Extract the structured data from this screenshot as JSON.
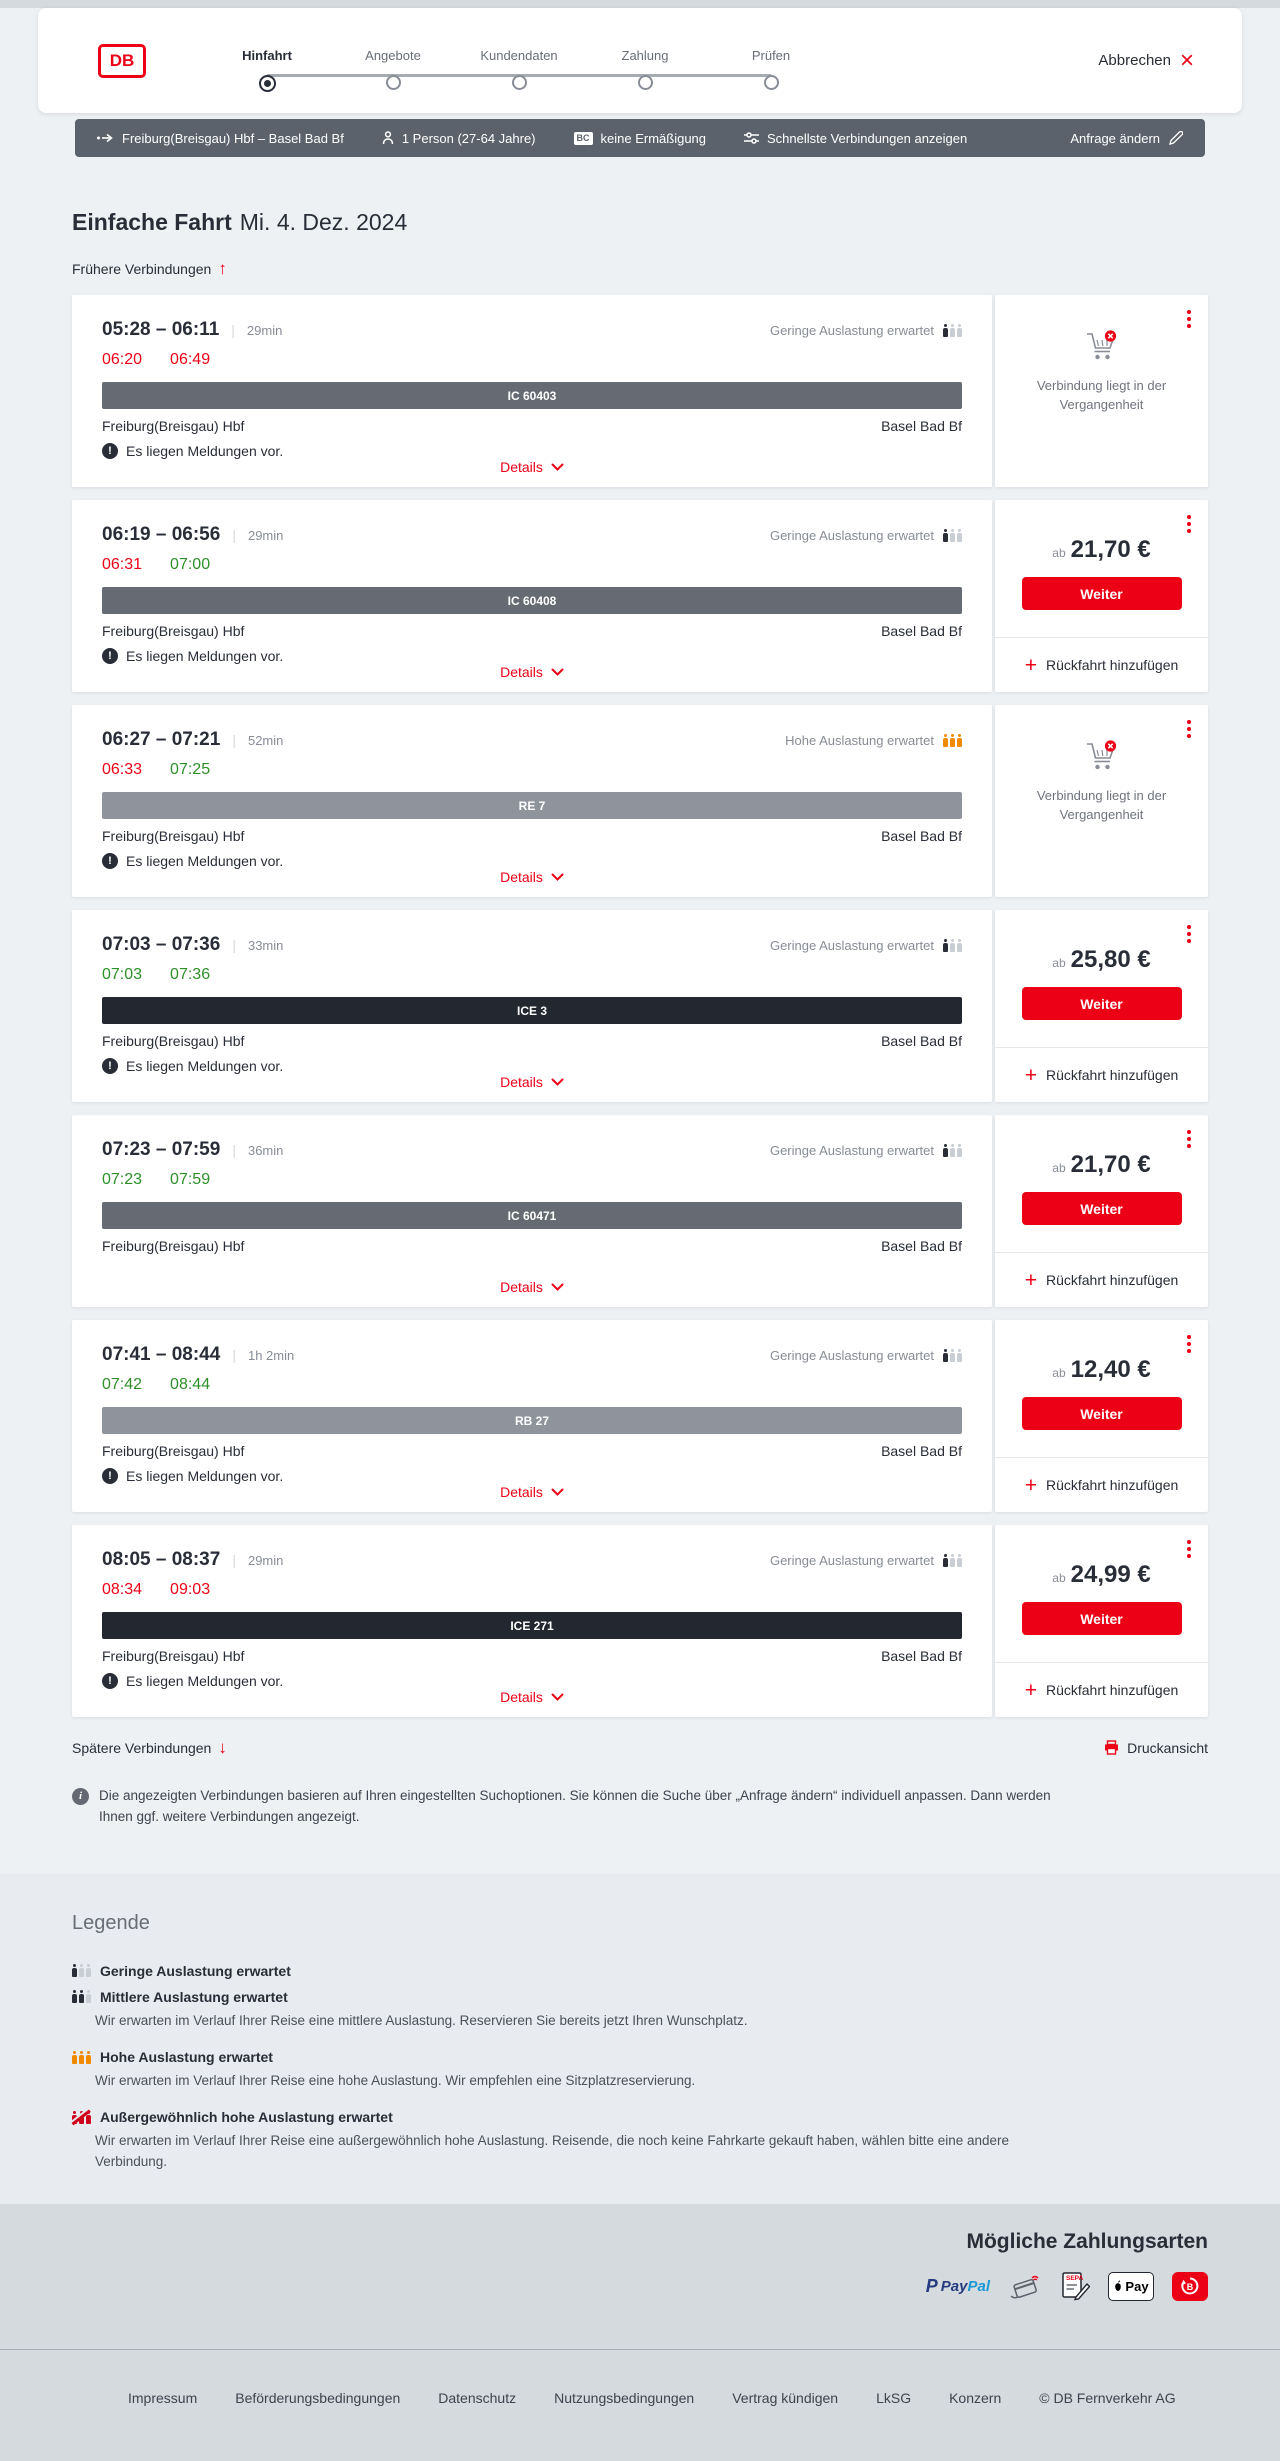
{
  "colors": {
    "brand_red": "#ec0016",
    "late_red": "#ec0016",
    "ontime_green": "#2e8f29",
    "high_occupancy_orange": "#f28a00",
    "bar_gray": "#5c626b",
    "dark": "#282d37"
  },
  "icons": {
    "close": "×",
    "plus": "+",
    "alert": "!",
    "arrow_up": "↑",
    "arrow_down": "↓",
    "info": "i"
  },
  "header": {
    "logo": "DB",
    "steps": [
      {
        "label": "Hinfahrt",
        "active": true
      },
      {
        "label": "Angebote",
        "active": false
      },
      {
        "label": "Kundendaten",
        "active": false
      },
      {
        "label": "Zahlung",
        "active": false
      },
      {
        "label": "Prüfen",
        "active": false
      }
    ],
    "cancel_label": "Abbrechen"
  },
  "query_bar": {
    "route": "Freiburg(Breisgau) Hbf – Basel Bad Bf",
    "passengers": "1 Person (27-64 Jahre)",
    "discount_badge": "BC",
    "discount": "keine Ermäßigung",
    "speed_option": "Schnellste Verbindungen anzeigen",
    "edit_label": "Anfrage ändern"
  },
  "main": {
    "title": "Einfache Fahrt",
    "date": "Mi. 4. Dez. 2024",
    "earlier_label": "Frühere Verbindungen",
    "later_label": "Spätere Verbindungen",
    "print_label": "Druckansicht",
    "info_note": "Die angezeigten Verbindungen basieren auf Ihren eingestellten Suchoptionen. Sie können die Suche über „Anfrage ändern“ individuell anpassen. Dann werden Ihnen ggf. weitere Verbindungen angezeigt."
  },
  "stations": {
    "from": "Freiburg(Breisgau) Hbf",
    "to": "Basel Bad Bf"
  },
  "labels": {
    "notice": "Es liegen Meldungen vor.",
    "details": "Details",
    "from_price_prefix": "ab",
    "weiter": "Weiter",
    "add_return": "Rückfahrt hinzufügen",
    "past_connection": "Verbindung liegt in der Vergangenheit"
  },
  "connections": [
    {
      "dep": "05:28",
      "arr": "06:11",
      "duration": "29min",
      "rt_dep": "06:20",
      "rt_arr": "06:49",
      "rt_dep_status": "late",
      "rt_arr_status": "late",
      "train": "IC 60403",
      "train_class": "ic",
      "occupancy": "low",
      "occupancy_label": "Geringe Auslastung erwartet",
      "notice": true,
      "panel": "past",
      "price": ""
    },
    {
      "dep": "06:19",
      "arr": "06:56",
      "duration": "29min",
      "rt_dep": "06:31",
      "rt_arr": "07:00",
      "rt_dep_status": "late",
      "rt_arr_status": "ontime",
      "train": "IC 60408",
      "train_class": "ic",
      "occupancy": "low",
      "occupancy_label": "Geringe Auslastung erwartet",
      "notice": true,
      "panel": "book",
      "price": "21,70 €"
    },
    {
      "dep": "06:27",
      "arr": "07:21",
      "duration": "52min",
      "rt_dep": "06:33",
      "rt_arr": "07:25",
      "rt_dep_status": "late",
      "rt_arr_status": "ontime",
      "train": "RE 7",
      "train_class": "regio",
      "occupancy": "high",
      "occupancy_label": "Hohe Auslastung erwartet",
      "notice": true,
      "panel": "past",
      "price": ""
    },
    {
      "dep": "07:03",
      "arr": "07:36",
      "duration": "33min",
      "rt_dep": "07:03",
      "rt_arr": "07:36",
      "rt_dep_status": "ontime",
      "rt_arr_status": "ontime",
      "train": "ICE 3",
      "train_class": "ice",
      "occupancy": "low",
      "occupancy_label": "Geringe Auslastung erwartet",
      "notice": true,
      "panel": "book",
      "price": "25,80 €"
    },
    {
      "dep": "07:23",
      "arr": "07:59",
      "duration": "36min",
      "rt_dep": "07:23",
      "rt_arr": "07:59",
      "rt_dep_status": "ontime",
      "rt_arr_status": "ontime",
      "train": "IC 60471",
      "train_class": "ic",
      "occupancy": "low",
      "occupancy_label": "Geringe Auslastung erwartet",
      "notice": false,
      "panel": "book",
      "price": "21,70 €"
    },
    {
      "dep": "07:41",
      "arr": "08:44",
      "duration": "1h 2min",
      "rt_dep": "07:42",
      "rt_arr": "08:44",
      "rt_dep_status": "ontime",
      "rt_arr_status": "ontime",
      "train": "RB 27",
      "train_class": "regio",
      "occupancy": "low",
      "occupancy_label": "Geringe Auslastung erwartet",
      "notice": true,
      "panel": "book",
      "price": "12,40 €"
    },
    {
      "dep": "08:05",
      "arr": "08:37",
      "duration": "29min",
      "rt_dep": "08:34",
      "rt_arr": "09:03",
      "rt_dep_status": "late",
      "rt_arr_status": "late",
      "train": "ICE 271",
      "train_class": "ice",
      "occupancy": "low",
      "occupancy_label": "Geringe Auslastung erwartet",
      "notice": true,
      "panel": "book",
      "price": "24,99 €"
    }
  ],
  "legend": {
    "title": "Legende",
    "items": [
      {
        "level": "low",
        "label": "Geringe Auslastung erwartet",
        "description": ""
      },
      {
        "level": "mid",
        "label": "Mittlere Auslastung erwartet",
        "description": "Wir erwarten im Verlauf Ihrer Reise eine mittlere Auslastung. Reservieren Sie bereits jetzt Ihren Wunschplatz."
      },
      {
        "level": "high",
        "label": "Hohe Auslastung erwartet",
        "description": "Wir erwarten im Verlauf Ihrer Reise eine hohe Auslastung. Wir empfehlen eine Sitzplatzreservierung."
      },
      {
        "level": "max",
        "label": "Außergewöhnlich hohe Auslastung erwartet",
        "description": "Wir erwarten im Verlauf Ihrer Reise eine außergewöhnlich hohe Auslastung. Reisende, die noch keine Fahrkarte gekauft haben, wählen bitte eine andere Verbindung."
      }
    ]
  },
  "payment": {
    "title": "Mögliche Zahlungsarten",
    "paypal": {
      "p1": "Pay",
      "p2": "Pal"
    },
    "sepa_label": "SEPA",
    "applepay_label": "Pay",
    "methods": [
      "paypal",
      "credit-card",
      "sepa-direct-debit",
      "apple-pay",
      "db-gutschein"
    ]
  },
  "footer": {
    "links": [
      "Impressum",
      "Beförderungsbedingungen",
      "Datenschutz",
      "Nutzungsbedingungen",
      "Vertrag kündigen",
      "LkSG",
      "Konzern"
    ],
    "copyright": "© DB Fernverkehr AG"
  }
}
